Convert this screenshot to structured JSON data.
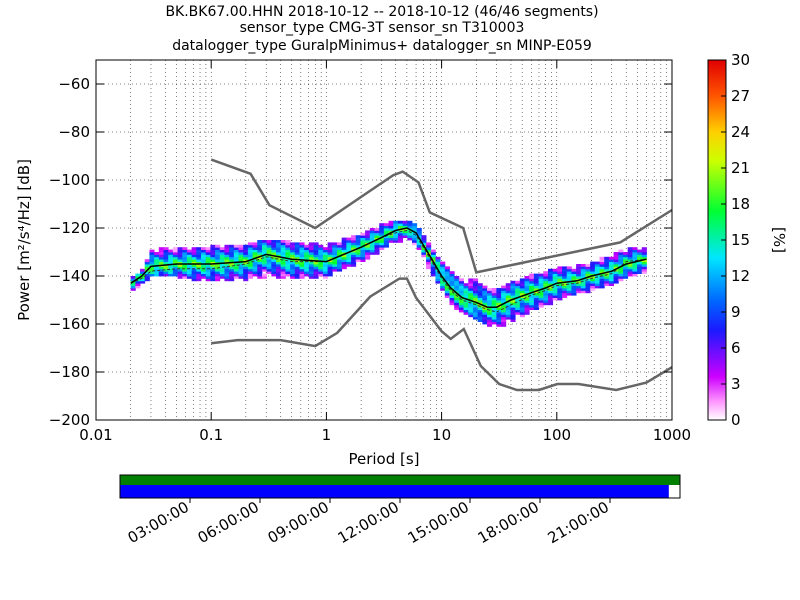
{
  "chart_data": {
    "type": "heatmap",
    "title_lines": [
      "BK.BK67.00.HHN   2018-10-12 -- 2018-10-12  (46/46 segments)",
      "sensor_type CMG-3T sensor_sn T310003",
      "datalogger_type GuralpMinimus+ datalogger_sn MINP-E059"
    ],
    "xlabel": "Period [s]",
    "ylabel": "Power [m²/s⁴/Hz] [dB]",
    "xscale": "log",
    "xlim": [
      0.01,
      1000
    ],
    "ylim": [
      -200,
      -50
    ],
    "x_ticks": [
      {
        "value": 0.01,
        "label": "0.01"
      },
      {
        "value": 0.1,
        "label": "0.1"
      },
      {
        "value": 1,
        "label": "1"
      },
      {
        "value": 10,
        "label": "10"
      },
      {
        "value": 100,
        "label": "100"
      },
      {
        "value": 1000,
        "label": "1000"
      }
    ],
    "y_ticks": [
      {
        "value": -60,
        "label": "−60"
      },
      {
        "value": -80,
        "label": "−80"
      },
      {
        "value": -100,
        "label": "−100"
      },
      {
        "value": -120,
        "label": "−120"
      },
      {
        "value": -140,
        "label": "−140"
      },
      {
        "value": -160,
        "label": "−160"
      },
      {
        "value": -180,
        "label": "−180"
      },
      {
        "value": -200,
        "label": "−200"
      }
    ],
    "grid": true,
    "colorbar": {
      "label": "[%]",
      "range": [
        0,
        30
      ],
      "ticks": [
        "0",
        "3",
        "6",
        "9",
        "12",
        "15",
        "18",
        "21",
        "24",
        "27",
        "30"
      ]
    },
    "nhnm": [
      [
        0.1,
        -91.5
      ],
      [
        0.22,
        -97.4
      ],
      [
        0.32,
        -110.5
      ],
      [
        0.8,
        -120.0
      ],
      [
        3.8,
        -98.0
      ],
      [
        4.6,
        -96.5
      ],
      [
        6.3,
        -101.0
      ],
      [
        7.9,
        -113.5
      ],
      [
        15.4,
        -120.0
      ],
      [
        20,
        -138.5
      ],
      [
        354.8,
        -126.0
      ],
      [
        1000,
        -112.5
      ]
    ],
    "nlnm": [
      [
        0.1,
        -168.0
      ],
      [
        0.17,
        -166.7
      ],
      [
        0.4,
        -166.7
      ],
      [
        0.8,
        -169.2
      ],
      [
        1.24,
        -163.7
      ],
      [
        2.4,
        -148.6
      ],
      [
        4.3,
        -141.1
      ],
      [
        5.0,
        -141.1
      ],
      [
        6.0,
        -149.0
      ],
      [
        10.0,
        -163.0
      ],
      [
        12.0,
        -166.2
      ],
      [
        15.6,
        -162.1
      ],
      [
        21.9,
        -177.5
      ],
      [
        31.6,
        -185.0
      ],
      [
        45,
        -187.5
      ],
      [
        70,
        -187.5
      ],
      [
        101,
        -185.0
      ],
      [
        154,
        -185.0
      ],
      [
        328,
        -187.5
      ],
      [
        600,
        -184.4
      ],
      [
        1000,
        -178.0
      ]
    ],
    "mode_curve": [
      [
        0.02,
        -143
      ],
      [
        0.025,
        -140
      ],
      [
        0.03,
        -136
      ],
      [
        0.05,
        -135
      ],
      [
        0.1,
        -135
      ],
      [
        0.2,
        -134
      ],
      [
        0.3,
        -131
      ],
      [
        0.5,
        -133
      ],
      [
        1.0,
        -134
      ],
      [
        2.0,
        -128
      ],
      [
        3.0,
        -124
      ],
      [
        4.0,
        -121
      ],
      [
        5.0,
        -120
      ],
      [
        6.0,
        -122
      ],
      [
        8.0,
        -132
      ],
      [
        10.0,
        -140
      ],
      [
        12.0,
        -145
      ],
      [
        15.0,
        -149
      ],
      [
        20.0,
        -151
      ],
      [
        25.0,
        -153
      ],
      [
        30.0,
        -153
      ],
      [
        40.0,
        -150
      ],
      [
        60.0,
        -147
      ],
      [
        80.0,
        -145
      ],
      [
        100.0,
        -143
      ],
      [
        150.0,
        -142
      ],
      [
        200.0,
        -140
      ],
      [
        300.0,
        -138
      ],
      [
        400.0,
        -135
      ],
      [
        600.0,
        -133
      ]
    ],
    "mean_curve": [
      [
        0.02,
        -143
      ],
      [
        0.025,
        -141
      ],
      [
        0.03,
        -138
      ],
      [
        0.05,
        -137
      ],
      [
        0.1,
        -137
      ],
      [
        0.2,
        -135
      ],
      [
        0.3,
        -132
      ],
      [
        0.5,
        -134
      ],
      [
        1.0,
        -134
      ],
      [
        2.0,
        -128
      ],
      [
        3.0,
        -124
      ],
      [
        4.0,
        -122
      ],
      [
        5.0,
        -121
      ],
      [
        6.0,
        -123
      ],
      [
        8.0,
        -133
      ],
      [
        10.0,
        -141
      ],
      [
        12.0,
        -146
      ],
      [
        15.0,
        -150
      ],
      [
        20.0,
        -152
      ],
      [
        25.0,
        -154
      ],
      [
        30.0,
        -155
      ],
      [
        40.0,
        -152
      ],
      [
        60.0,
        -148
      ],
      [
        80.0,
        -146
      ],
      [
        100.0,
        -144
      ],
      [
        150.0,
        -143
      ],
      [
        200.0,
        -141
      ],
      [
        300.0,
        -139
      ],
      [
        400.0,
        -134
      ],
      [
        600.0,
        -133
      ]
    ],
    "band": [
      [
        0.02,
        -147,
        -141
      ],
      [
        0.025,
        -144,
        -138
      ],
      [
        0.03,
        -140,
        -128
      ],
      [
        0.05,
        -140,
        -128
      ],
      [
        0.1,
        -142,
        -128
      ],
      [
        0.2,
        -141,
        -127
      ],
      [
        0.3,
        -140,
        -125
      ],
      [
        0.5,
        -141,
        -126
      ],
      [
        1.0,
        -140,
        -127
      ],
      [
        2.0,
        -134,
        -123
      ],
      [
        3.0,
        -129,
        -119
      ],
      [
        4.0,
        -126,
        -117
      ],
      [
        5.0,
        -125,
        -117
      ],
      [
        6.0,
        -127,
        -119
      ],
      [
        8.0,
        -138,
        -128
      ],
      [
        10.0,
        -146,
        -134
      ],
      [
        12.0,
        -151,
        -137
      ],
      [
        15.0,
        -155,
        -140
      ],
      [
        20.0,
        -158,
        -142
      ],
      [
        25.0,
        -160,
        -144
      ],
      [
        30.0,
        -161,
        -146
      ],
      [
        40.0,
        -159,
        -143
      ],
      [
        60.0,
        -155,
        -140
      ],
      [
        80.0,
        -152,
        -138
      ],
      [
        100.0,
        -150,
        -137
      ],
      [
        150.0,
        -147,
        -136
      ],
      [
        200.0,
        -146,
        -135
      ],
      [
        300.0,
        -143,
        -131
      ],
      [
        400.0,
        -140,
        -128
      ],
      [
        600.0,
        -138,
        -128
      ]
    ],
    "timeline": {
      "labels": [
        "03:00:00",
        "06:00:00",
        "09:00:00",
        "12:00:00",
        "15:00:00",
        "18:00:00",
        "21:00:00"
      ],
      "tick_hours": [
        3,
        6,
        9,
        12,
        15,
        18,
        21
      ],
      "span_hours": 24,
      "data_coverage_fraction": 1.0,
      "psd_coverage_fraction": 0.98,
      "data_color": "#007f00",
      "psd_color": "#0000ff"
    },
    "colors": {
      "model_line": "#666666",
      "mode_line": "#000000",
      "frame": "#000000"
    }
  }
}
